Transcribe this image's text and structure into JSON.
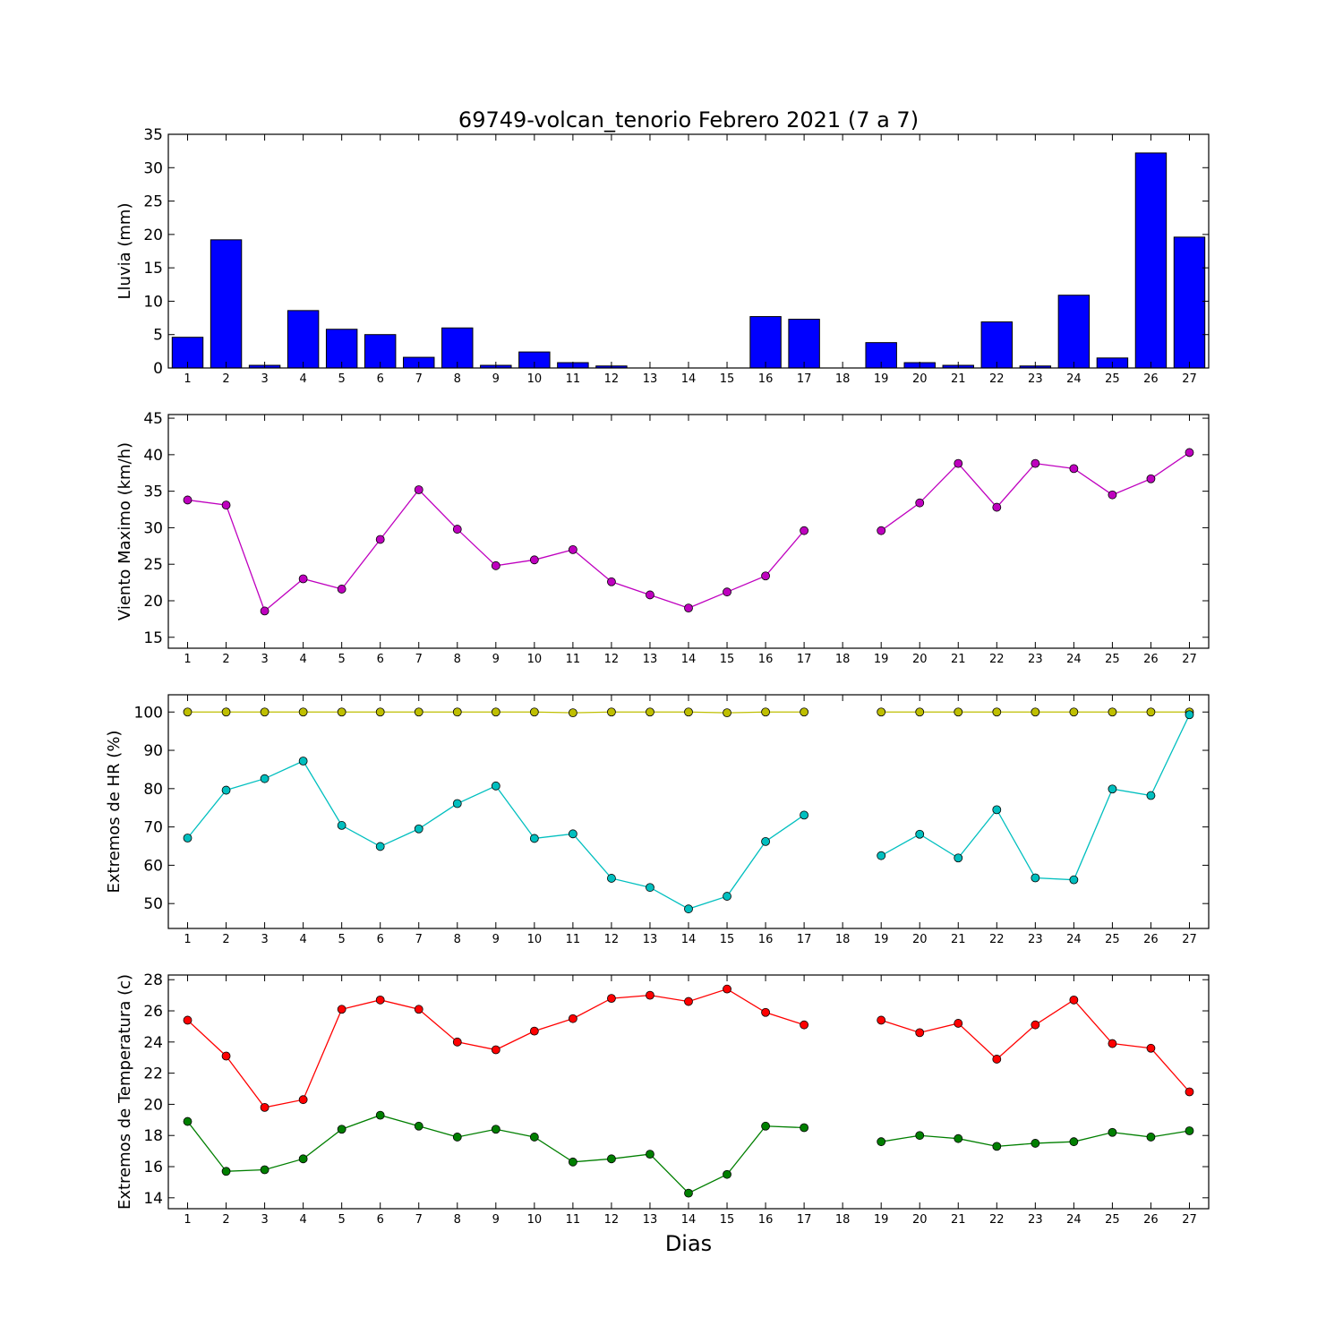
{
  "chart_data": {
    "title": "69749-volcan_tenorio Febrero 2021  (7 a 7)",
    "xlabel": "Dias",
    "days": [
      1,
      2,
      3,
      4,
      5,
      6,
      7,
      8,
      9,
      10,
      11,
      12,
      13,
      14,
      15,
      16,
      17,
      18,
      19,
      20,
      21,
      22,
      23,
      24,
      25,
      26,
      27
    ],
    "grid": false,
    "panels": [
      {
        "type": "bar",
        "ylabel": "Lluvia (mm)",
        "ylim": [
          0,
          35
        ],
        "yticks": [
          0,
          5,
          10,
          15,
          20,
          25,
          30,
          35
        ],
        "series": [
          {
            "color": "#0000ff",
            "values": [
              4.6,
              19.2,
              0.4,
              8.6,
              5.8,
              5.0,
              1.6,
              6.0,
              0.4,
              2.4,
              0.8,
              0.3,
              0,
              0,
              0,
              7.7,
              7.3,
              null,
              3.8,
              0.8,
              0.4,
              6.9,
              0.3,
              10.9,
              1.5,
              32.2,
              19.6
            ]
          }
        ]
      },
      {
        "type": "line",
        "ylabel": "Viento Maximo (km/h)",
        "ylim": [
          13.5,
          45.5
        ],
        "yticks": [
          15,
          20,
          25,
          30,
          35,
          40,
          45
        ],
        "series": [
          {
            "color": "#bf00bf",
            "values": [
              33.8,
              33.1,
              18.6,
              23.0,
              21.6,
              28.4,
              35.2,
              29.8,
              24.8,
              25.6,
              27.0,
              22.6,
              20.8,
              19.0,
              21.2,
              23.4,
              29.6,
              null,
              29.6,
              33.4,
              38.8,
              32.8,
              38.8,
              38.1,
              34.5,
              36.7,
              40.3
            ]
          }
        ]
      },
      {
        "type": "line",
        "ylabel": "Extremos de HR (%)",
        "ylim": [
          43.5,
          104.5
        ],
        "yticks": [
          50,
          60,
          70,
          80,
          90,
          100
        ],
        "series": [
          {
            "color": "#bfbf00",
            "values": [
              100,
              100,
              100,
              100,
              100,
              100,
              100,
              100,
              100,
              100,
              99.8,
              100,
              100,
              100,
              99.8,
              100,
              100,
              null,
              100,
              100,
              100,
              100,
              100,
              100,
              100,
              100,
              100
            ]
          },
          {
            "color": "#00bfbf",
            "values": [
              67.1,
              79.6,
              82.6,
              87.2,
              70.4,
              64.9,
              69.5,
              76.1,
              80.7,
              67.0,
              68.2,
              56.6,
              54.2,
              48.6,
              51.9,
              66.2,
              73.1,
              null,
              62.5,
              68.1,
              61.9,
              74.5,
              56.7,
              56.2,
              79.9,
              78.2,
              99.3
            ]
          }
        ]
      },
      {
        "type": "line",
        "ylabel": "Extremos de Temperatura (c)",
        "ylim": [
          13.3,
          28.3
        ],
        "yticks": [
          14,
          16,
          18,
          20,
          22,
          24,
          26,
          28
        ],
        "series": [
          {
            "color": "#ff0000",
            "values": [
              25.4,
              23.1,
              19.8,
              20.3,
              26.1,
              26.7,
              26.1,
              24.0,
              23.5,
              24.7,
              25.5,
              26.8,
              27.0,
              26.6,
              27.4,
              25.9,
              25.1,
              null,
              25.4,
              24.6,
              25.2,
              22.9,
              25.1,
              26.7,
              23.9,
              23.6,
              20.8
            ]
          },
          {
            "color": "#007f00",
            "values": [
              18.9,
              15.7,
              15.8,
              16.5,
              18.4,
              19.3,
              18.6,
              17.9,
              18.4,
              17.9,
              16.3,
              16.5,
              16.8,
              14.3,
              15.5,
              18.6,
              18.5,
              null,
              17.6,
              18.0,
              17.8,
              17.3,
              17.5,
              17.6,
              18.2,
              17.9,
              18.3
            ]
          }
        ]
      }
    ]
  }
}
